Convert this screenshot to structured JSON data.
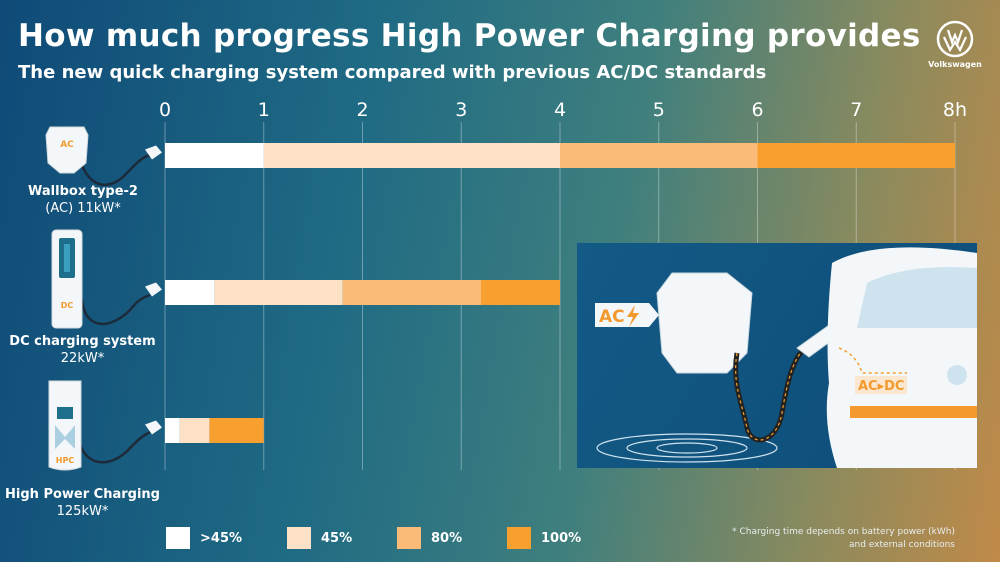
{
  "header": {
    "title": "How much progress High Power Charging provides",
    "subtitle": "The new quick charging system compared with previous AC/DC standards"
  },
  "brand": {
    "name": "Volkswagen"
  },
  "colors": {
    "seg_1": "#ffffff",
    "seg_2": "#fce1c6",
    "seg_3": "#fbbb78",
    "seg_4": "#f7a030",
    "accent": "#f29a2e"
  },
  "rows": [
    {
      "name": "Wallbox type-2",
      "detail": "(AC) 11kW*",
      "station_label": "AC"
    },
    {
      "name": "DC charging system",
      "detail": "22kW*",
      "station_label": "DC"
    },
    {
      "name": "High Power Charging",
      "detail": "125kW*",
      "station_label": "HPC"
    }
  ],
  "chart_data": {
    "type": "bar",
    "orientation": "horizontal",
    "stacked": true,
    "x_unit": "h",
    "xlim": [
      0,
      8
    ],
    "x_ticks": [
      "0",
      "1",
      "2",
      "3",
      "4",
      "5",
      "6",
      "7",
      "8h"
    ],
    "categories": [
      "Wallbox type-2 (AC) 11kW*",
      "DC charging system 22kW*",
      "High Power Charging 125kW*"
    ],
    "series": [
      {
        "name": ">45%",
        "values": [
          1.0,
          0.5,
          0.15
        ]
      },
      {
        "name": "45%",
        "values": [
          3.0,
          1.3,
          0.3
        ]
      },
      {
        "name": "80%",
        "values": [
          2.0,
          1.4,
          0.0
        ]
      },
      {
        "name": "100%",
        "values": [
          2.0,
          0.8,
          0.55
        ]
      }
    ],
    "grid": true,
    "legend_position": "bottom"
  },
  "legend": [
    {
      "label": ">45%",
      "color": "#ffffff"
    },
    {
      "label": "45%",
      "color": "#fce1c6"
    },
    {
      "label": "80%",
      "color": "#fbbb78"
    },
    {
      "label": "100%",
      "color": "#f7a030"
    }
  ],
  "footnote": "* Charging time depends on battery power (kWh) and external conditions",
  "inset": {
    "ac_label": "AC",
    "acdc_label": "AC▸DC"
  }
}
